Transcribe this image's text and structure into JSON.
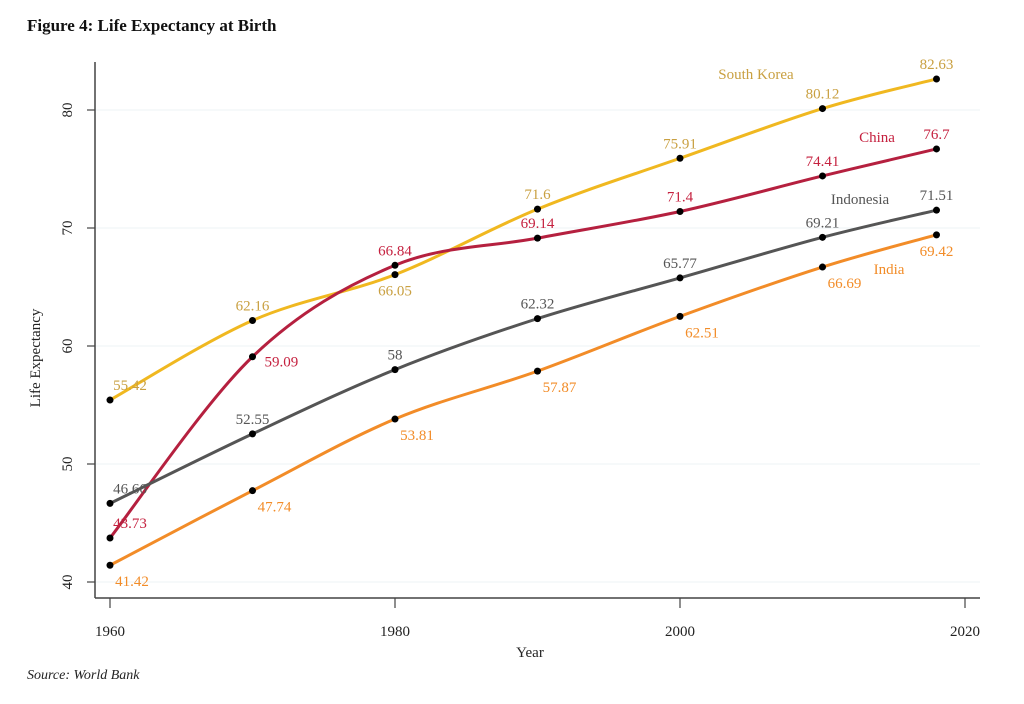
{
  "figure_title": "Figure 4: Life Expectancy at Birth",
  "source_note": "Source: World Bank",
  "chart_data": {
    "type": "line",
    "title": "Figure 4: Life Expectancy at Birth",
    "xlabel": "Year",
    "ylabel": "Life Expectancy",
    "xlim": [
      1959,
      2021
    ],
    "ylim": [
      38.5,
      84.5
    ],
    "xticks": [
      1960,
      1980,
      2000,
      2020
    ],
    "yticks": [
      40,
      50,
      60,
      70,
      80
    ],
    "grid": "horizontal",
    "legend": "inline-labels",
    "series": [
      {
        "name": "South Korea",
        "color": "#f0b820",
        "label_color": "#c9a041",
        "x": [
          1960,
          1970,
          1980,
          1990,
          2000,
          2010,
          2018
        ],
        "values": [
          55.42,
          62.16,
          66.05,
          71.6,
          75.91,
          80.12,
          82.63
        ],
        "label_pos": [
          "above",
          "above",
          "below",
          "above",
          "above",
          "above",
          "above"
        ]
      },
      {
        "name": "China",
        "color": "#b5203f",
        "label_color": "#c5213f",
        "x": [
          1960,
          1970,
          1980,
          1990,
          2000,
          2010,
          2018
        ],
        "values": [
          43.73,
          59.09,
          66.84,
          69.14,
          71.4,
          74.41,
          76.7
        ],
        "label_pos": [
          "above",
          "right",
          "above",
          "above",
          "above",
          "above",
          "above"
        ]
      },
      {
        "name": "Indonesia",
        "color": "#555555",
        "label_color": "#555555",
        "x": [
          1960,
          1970,
          1980,
          1990,
          2000,
          2010,
          2018
        ],
        "values": [
          46.66,
          52.55,
          58,
          62.32,
          65.77,
          69.21,
          71.51
        ],
        "label_pos": [
          "above",
          "above",
          "above",
          "above",
          "above",
          "above",
          "above"
        ]
      },
      {
        "name": "India",
        "color": "#f28c28",
        "label_color": "#f28c28",
        "x": [
          1960,
          1970,
          1980,
          1990,
          2000,
          2010,
          2018
        ],
        "values": [
          41.42,
          47.74,
          53.81,
          57.87,
          62.51,
          66.69,
          69.42
        ],
        "label_pos": [
          "below",
          "below",
          "below",
          "below",
          "below",
          "below",
          "below"
        ]
      }
    ]
  }
}
